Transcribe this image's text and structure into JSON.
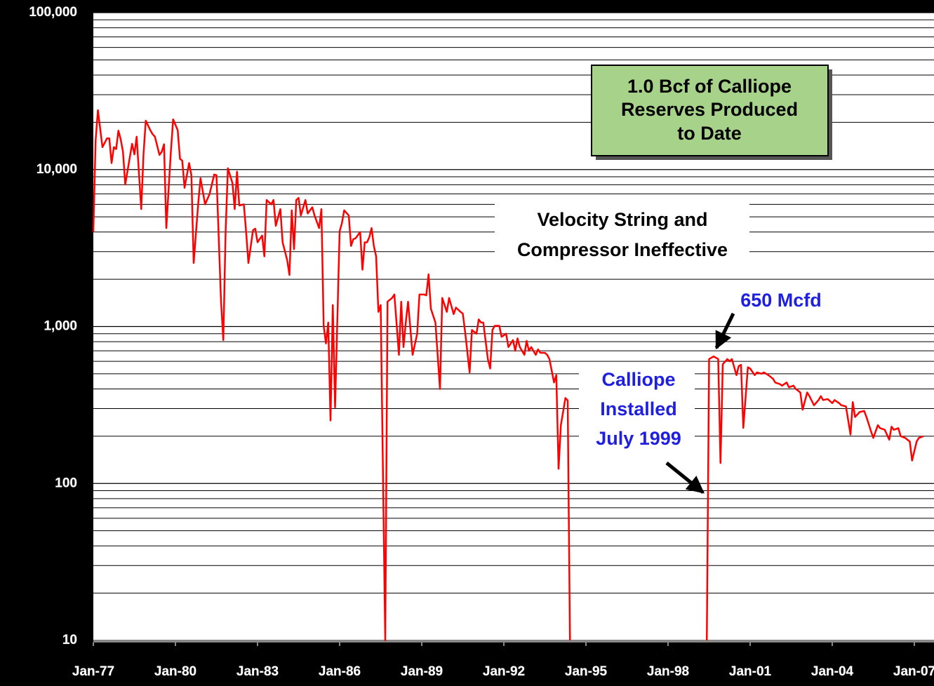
{
  "chart_data": {
    "type": "line",
    "log_y": true,
    "grid": true,
    "minor_grid": true,
    "xlim": [
      "1977-01",
      "2007-09"
    ],
    "xticks": [
      {
        "value": "1977-01",
        "label": "Jan-77"
      },
      {
        "value": "1980-01",
        "label": "Jan-80"
      },
      {
        "value": "1983-01",
        "label": "Jan-83"
      },
      {
        "value": "1986-01",
        "label": "Jan-86"
      },
      {
        "value": "1989-01",
        "label": "Jan-89"
      },
      {
        "value": "1992-01",
        "label": "Jan-92"
      },
      {
        "value": "1995-01",
        "label": "Jan-95"
      },
      {
        "value": "1998-01",
        "label": "Jan-98"
      },
      {
        "value": "2001-01",
        "label": "Jan-01"
      },
      {
        "value": "2004-01",
        "label": "Jan-04"
      },
      {
        "value": "2007-01",
        "label": "Jan-07"
      }
    ],
    "ylim": [
      10,
      100000
    ],
    "yticks": [
      10,
      100,
      {
        "value": 1000,
        "label": "1,000"
      },
      {
        "value": 10000,
        "label": "10,000"
      },
      {
        "value": 100000,
        "label": "100,000"
      }
    ],
    "annotations": [
      {
        "lines": [
          "1.0 Bcf of Calliope",
          "Reserves Produced",
          "to Date"
        ]
      },
      {
        "lines": [
          "Velocity String and",
          "Compressor Ineffective"
        ]
      },
      {
        "lines": [
          "650 Mcfd"
        ],
        "color": "#1f1fe0"
      },
      {
        "lines": [
          "Calliope",
          "Installed",
          "July 1999"
        ],
        "color": "#1f1fe0"
      }
    ],
    "x": [
      "1977-01",
      "1977-02",
      "1977-03",
      "1977-05",
      "1977-07",
      "1977-08",
      "1977-09",
      "1977-10",
      "1977-11",
      "1977-12",
      "1978-01",
      "1978-02",
      "1978-03",
      "1978-05",
      "1978-06",
      "1978-07",
      "1978-08",
      "1978-10",
      "1978-11",
      "1978-12",
      "1979-02",
      "1979-03",
      "1979-04",
      "1979-06",
      "1979-07",
      "1979-08",
      "1979-09",
      "1979-11",
      "1979-12",
      "1980-02",
      "1980-03",
      "1980-04",
      "1980-05",
      "1980-07",
      "1980-08",
      "1980-09",
      "1980-11",
      "1980-12",
      "1981-02",
      "1981-04",
      "1981-06",
      "1981-07",
      "1981-09",
      "1981-10",
      "1981-11",
      "1981-12",
      "1982-02",
      "1982-03",
      "1982-04",
      "1982-05",
      "1982-07",
      "1982-08",
      "1982-09",
      "1982-11",
      "1982-12",
      "1983-01",
      "1983-03",
      "1983-04",
      "1983-05",
      "1983-07",
      "1983-08",
      "1983-09",
      "1983-11",
      "1983-12",
      "1984-02",
      "1984-03",
      "1984-04",
      "1984-05",
      "1984-06",
      "1984-07",
      "1984-08",
      "1984-10",
      "1984-11",
      "1985-01",
      "1985-02",
      "1985-04",
      "1985-05",
      "1985-06",
      "1985-07",
      "1985-08",
      "1985-09",
      "1985-10",
      "1985-11",
      "1986-01",
      "1986-02",
      "1986-03",
      "1986-05",
      "1986-06",
      "1986-07",
      "1986-08",
      "1986-10",
      "1986-11",
      "1986-12",
      "1987-01",
      "1987-02",
      "1987-03",
      "1987-04",
      "1987-05",
      "1987-06",
      "1987-07",
      "1987-09",
      "1987-10",
      "1987-12",
      "1988-01",
      "1988-03",
      "1988-04",
      "1988-05",
      "1988-06",
      "1988-07",
      "1988-09",
      "1988-11",
      "1988-12",
      "1989-02",
      "1989-03",
      "1989-04",
      "1989-05",
      "1989-07",
      "1989-09",
      "1989-10",
      "1989-12",
      "1990-01",
      "1990-03",
      "1990-04",
      "1990-06",
      "1990-07",
      "1990-08",
      "1990-10",
      "1990-11",
      "1991-01",
      "1991-02",
      "1991-03",
      "1991-04",
      "1991-06",
      "1991-07",
      "1991-08",
      "1991-09",
      "1991-11",
      "1991-12",
      "1992-02",
      "1992-03",
      "1992-05",
      "1992-06",
      "1992-07",
      "1992-08",
      "1992-10",
      "1992-11",
      "1992-12",
      "1993-01",
      "1993-03",
      "1993-04",
      "1993-05",
      "1993-07",
      "1993-08",
      "1993-09",
      "1993-11",
      "1993-12",
      "1994-01",
      "1994-02",
      "1994-04",
      "1994-05",
      "1994-06",
      "1997-01",
      "1999-06",
      "1999-07",
      "1999-09",
      "1999-11",
      "1999-12",
      "2000-01",
      "2000-03",
      "2000-04",
      "2000-05",
      "2000-07",
      "2000-08",
      "2000-09",
      "2000-10",
      "2000-12",
      "2001-01",
      "2001-03",
      "2001-04",
      "2001-06",
      "2001-07",
      "2001-09",
      "2001-11",
      "2001-12",
      "2002-02",
      "2002-03",
      "2002-05",
      "2002-06",
      "2002-08",
      "2002-09",
      "2002-11",
      "2002-12",
      "2003-02",
      "2003-03",
      "2003-05",
      "2003-07",
      "2003-08",
      "2003-09",
      "2003-11",
      "2004-01",
      "2004-02",
      "2004-04",
      "2004-05",
      "2004-07",
      "2004-09",
      "2004-10",
      "2004-11",
      "2005-01",
      "2005-03",
      "2005-04",
      "2005-06",
      "2005-07",
      "2005-09",
      "2005-10",
      "2005-12",
      "2006-02",
      "2006-03",
      "2006-04",
      "2006-06",
      "2006-07",
      "2006-09",
      "2006-11",
      "2006-12",
      "2007-02",
      "2007-03",
      "2007-05"
    ],
    "series": [
      {
        "color": "#ff0000",
        "values": [
          4000,
          15300,
          23900,
          13900,
          15800,
          15800,
          11000,
          13900,
          13500,
          17700,
          15600,
          13000,
          8030,
          12000,
          14600,
          12500,
          16200,
          5600,
          12500,
          20500,
          17800,
          16800,
          16200,
          12400,
          13000,
          14500,
          4240,
          13000,
          20900,
          17800,
          11700,
          11400,
          7650,
          11000,
          9200,
          2540,
          6100,
          8800,
          6000,
          7000,
          9300,
          9200,
          1440,
          820,
          4000,
          10200,
          8200,
          5600,
          9700,
          5900,
          6000,
          4000,
          2540,
          4100,
          4200,
          3440,
          3800,
          2800,
          6400,
          6000,
          6400,
          4380,
          5600,
          3440,
          2650,
          2130,
          5500,
          3110,
          6400,
          6600,
          5100,
          6400,
          5250,
          5750,
          5100,
          4240,
          5600,
          1010,
          780,
          1060,
          252,
          1370,
          305,
          4040,
          4560,
          5500,
          5100,
          3260,
          3600,
          3650,
          4000,
          2300,
          3440,
          3440,
          3700,
          4240,
          3260,
          2800,
          1240,
          1370,
          10,
          1440,
          1520,
          1600,
          660,
          1440,
          740,
          1060,
          1440,
          660,
          900,
          1600,
          1600,
          1580,
          2150,
          1300,
          1060,
          400,
          1520,
          1240,
          1520,
          1200,
          1320,
          1240,
          1210,
          930,
          510,
          950,
          900,
          1110,
          1060,
          1060,
          620,
          540,
          950,
          1010,
          1010,
          860,
          900,
          740,
          820,
          700,
          840,
          740,
          660,
          810,
          700,
          740,
          660,
          715,
          680,
          680,
          660,
          620,
          440,
          490,
          124,
          235,
          350,
          338,
          10,
          null,
          10,
          620,
          645,
          620,
          135,
          575,
          620,
          600,
          620,
          490,
          560,
          570,
          226,
          550,
          540,
          490,
          510,
          500,
          510,
          490,
          465,
          440,
          430,
          420,
          440,
          410,
          420,
          400,
          380,
          295,
          380,
          360,
          315,
          340,
          360,
          340,
          345,
          325,
          340,
          325,
          315,
          310,
          205,
          330,
          265,
          285,
          290,
          265,
          215,
          195,
          235,
          225,
          220,
          190,
          230,
          220,
          225,
          200,
          195,
          185,
          140,
          185,
          195,
          200
        ]
      }
    ]
  }
}
